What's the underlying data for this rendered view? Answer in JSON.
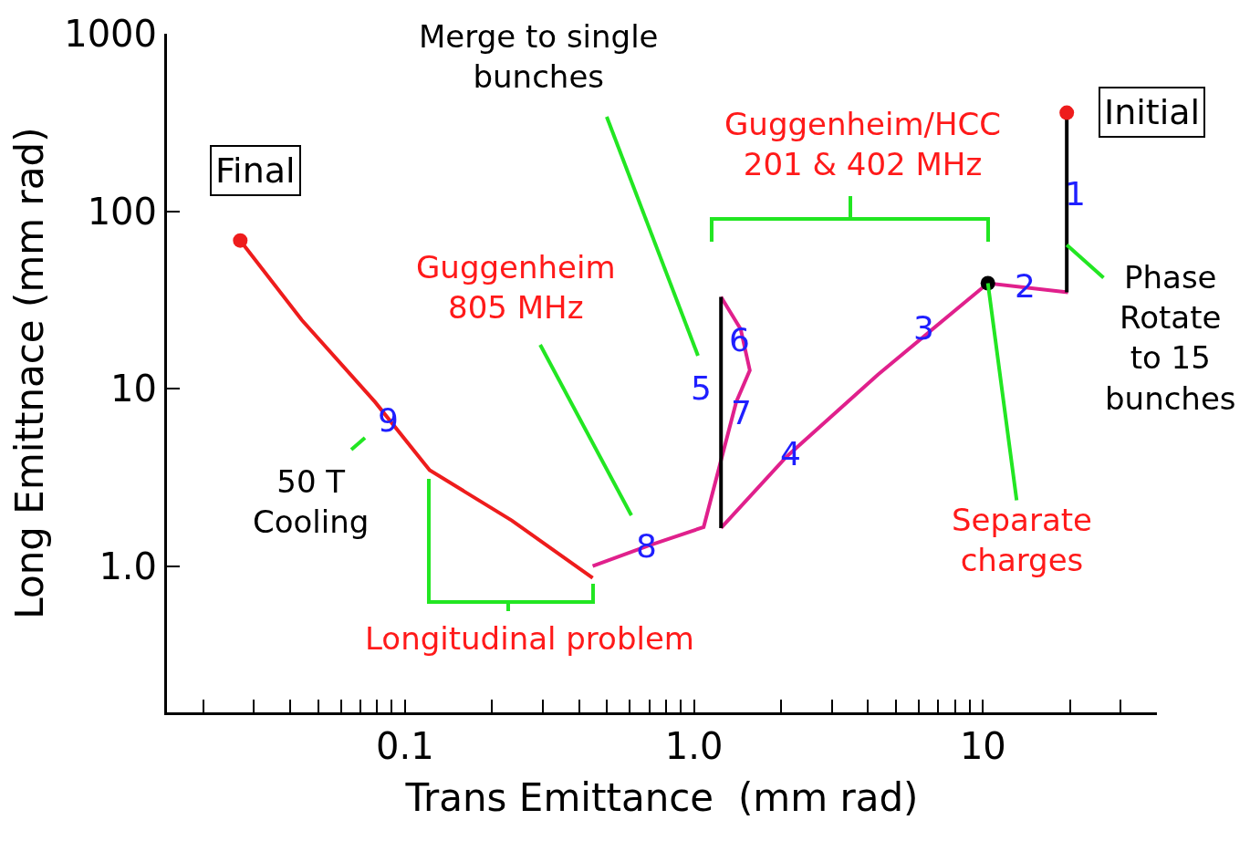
{
  "chart_data": {
    "type": "line",
    "xlabel": "Trans Emittance  (mm rad)",
    "ylabel": "Long Emittnace (mm rad)",
    "log": "xy",
    "xlim": [
      0.015,
      40
    ],
    "ylim": [
      0.15,
      1000
    ],
    "xticks": [
      {
        "value": 0.02,
        "label": null
      },
      {
        "value": 0.03,
        "label": null
      },
      {
        "value": 0.04,
        "label": null
      },
      {
        "value": 0.05,
        "label": null
      },
      {
        "value": 0.06,
        "label": null
      },
      {
        "value": 0.07,
        "label": null
      },
      {
        "value": 0.08,
        "label": null
      },
      {
        "value": 0.09,
        "label": null
      },
      0.1,
      {
        "value": 0.2,
        "label": null
      },
      {
        "value": 0.3,
        "label": null
      },
      {
        "value": 0.4,
        "label": null
      },
      {
        "value": 0.5,
        "label": null
      },
      {
        "value": 0.6,
        "label": null
      },
      {
        "value": 0.7,
        "label": null
      },
      {
        "value": 0.8,
        "label": null
      },
      {
        "value": 0.9,
        "label": null
      },
      {
        "value": 1,
        "label": "1.0"
      },
      {
        "value": 2,
        "label": null
      },
      {
        "value": 3,
        "label": null
      },
      {
        "value": 4,
        "label": null
      },
      {
        "value": 5,
        "label": null
      },
      {
        "value": 6,
        "label": null
      },
      {
        "value": 7,
        "label": null
      },
      {
        "value": 8,
        "label": null
      },
      {
        "value": 9,
        "label": null
      },
      10,
      {
        "value": 20,
        "label": null
      },
      {
        "value": 30,
        "label": null
      }
    ],
    "yticks": [
      {
        "value": 1,
        "label": "1.0"
      },
      10,
      100,
      1000
    ],
    "series": [
      {
        "color": "#ee1c1c",
        "marker": "none",
        "x": [
          0.0269,
          0.0439,
          0.0787,
          0.1217,
          0.234,
          0.446
        ],
        "values": [
          68.4,
          24.4,
          8.42,
          3.47,
          1.81,
          0.857
        ]
      },
      {
        "color": "#e0208c",
        "marker": "none",
        "x": [
          0.446,
          0.69,
          1.08,
          1.4,
          1.56,
          1.45,
          1.24
        ],
        "values": [
          1.0,
          1.3,
          1.66,
          8.42,
          12.7,
          21.7,
          32.9
        ]
      },
      {
        "color": "#e0208c",
        "marker": "none",
        "x": [
          1.24,
          2.09,
          4.33,
          10.4,
          19.7
        ],
        "values": [
          1.64,
          4.14,
          12.0,
          39.3,
          34.9
        ]
      },
      {
        "color": "#000000",
        "marker": "none",
        "x": [
          1.24,
          1.24
        ],
        "values": [
          1.64,
          32.9
        ]
      },
      {
        "color": "#000000",
        "marker": "none",
        "x": [
          19.5,
          19.5
        ],
        "values": [
          34.9,
          359
        ]
      },
      {
        "type": "scatter",
        "color": "#ee1c1c",
        "marker": "circle",
        "x": [
          0.0269,
          19.5
        ],
        "values": [
          68.4,
          359
        ]
      },
      {
        "type": "scatter",
        "color": "#000000",
        "marker": "circle",
        "x": [
          10.4
        ],
        "values": [
          39.3
        ]
      }
    ],
    "annotations": [
      "1",
      "2",
      "3",
      "4",
      "5",
      "6",
      "7",
      "8",
      "9",
      "Guggenheim/HCC\n201 & 402 MHz",
      "Guggenheim\n805 MHz",
      "Longitudinal problem",
      {
        "text": "Separate\ncharges",
        "x": 10.4,
        "y": 39.3
      },
      "Merge to single\nbunches",
      "50 T\nCooling",
      "Final",
      "Initial",
      {
        "text": "Phase\nRotate\nto 15\nbunches",
        "x": 19.5,
        "y": 64.6
      }
    ]
  }
}
